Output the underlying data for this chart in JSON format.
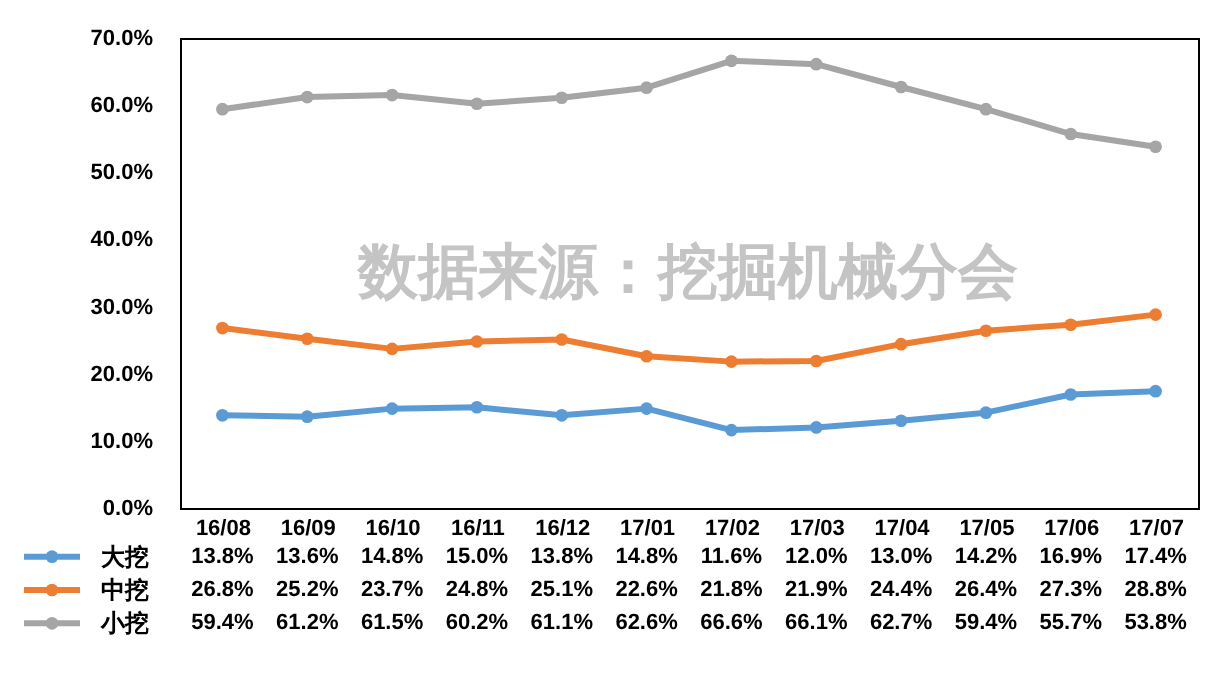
{
  "chart_data": {
    "type": "line",
    "categories": [
      "16/08",
      "16/09",
      "16/10",
      "16/11",
      "16/12",
      "17/01",
      "17/02",
      "17/03",
      "17/04",
      "17/05",
      "17/06",
      "17/07"
    ],
    "series": [
      {
        "name": "大挖",
        "color": "#5b9bd5",
        "values": [
          13.8,
          13.6,
          14.8,
          15.0,
          13.8,
          14.8,
          11.6,
          12.0,
          13.0,
          14.2,
          16.9,
          17.4
        ],
        "value_labels": [
          "13.8%",
          "13.6%",
          "14.8%",
          "15.0%",
          "13.8%",
          "14.8%",
          "11.6%",
          "12.0%",
          "13.0%",
          "14.2%",
          "16.9%",
          "17.4%"
        ]
      },
      {
        "name": "中挖",
        "color": "#ed7d31",
        "values": [
          26.8,
          25.2,
          23.7,
          24.8,
          25.1,
          22.6,
          21.8,
          21.9,
          24.4,
          26.4,
          27.3,
          28.8
        ],
        "value_labels": [
          "26.8%",
          "25.2%",
          "23.7%",
          "24.8%",
          "25.1%",
          "22.6%",
          "21.8%",
          "21.9%",
          "24.4%",
          "26.4%",
          "27.3%",
          "28.8%"
        ]
      },
      {
        "name": "小挖",
        "color": "#a5a5a5",
        "values": [
          59.4,
          61.2,
          61.5,
          60.2,
          61.1,
          62.6,
          66.6,
          66.1,
          62.7,
          59.4,
          55.7,
          53.8
        ],
        "value_labels": [
          "59.4%",
          "61.2%",
          "61.5%",
          "60.2%",
          "61.1%",
          "62.6%",
          "66.6%",
          "66.1%",
          "62.7%",
          "59.4%",
          "55.7%",
          "53.8%"
        ]
      }
    ],
    "ylim": [
      0,
      70
    ],
    "yticks": [
      {
        "value": 0,
        "label": "0.0%"
      },
      {
        "value": 10,
        "label": "10.0%"
      },
      {
        "value": 20,
        "label": "20.0%"
      },
      {
        "value": 30,
        "label": "30.0%"
      },
      {
        "value": 40,
        "label": "40.0%"
      },
      {
        "value": 50,
        "label": "50.0%"
      },
      {
        "value": 60,
        "label": "60.0%"
      },
      {
        "value": 70,
        "label": "70.0%"
      }
    ],
    "grid": false,
    "legend": "bottom",
    "marker": "circle",
    "line_style": "solid",
    "annotations": [
      "数据来源：挖掘机械分会"
    ]
  }
}
